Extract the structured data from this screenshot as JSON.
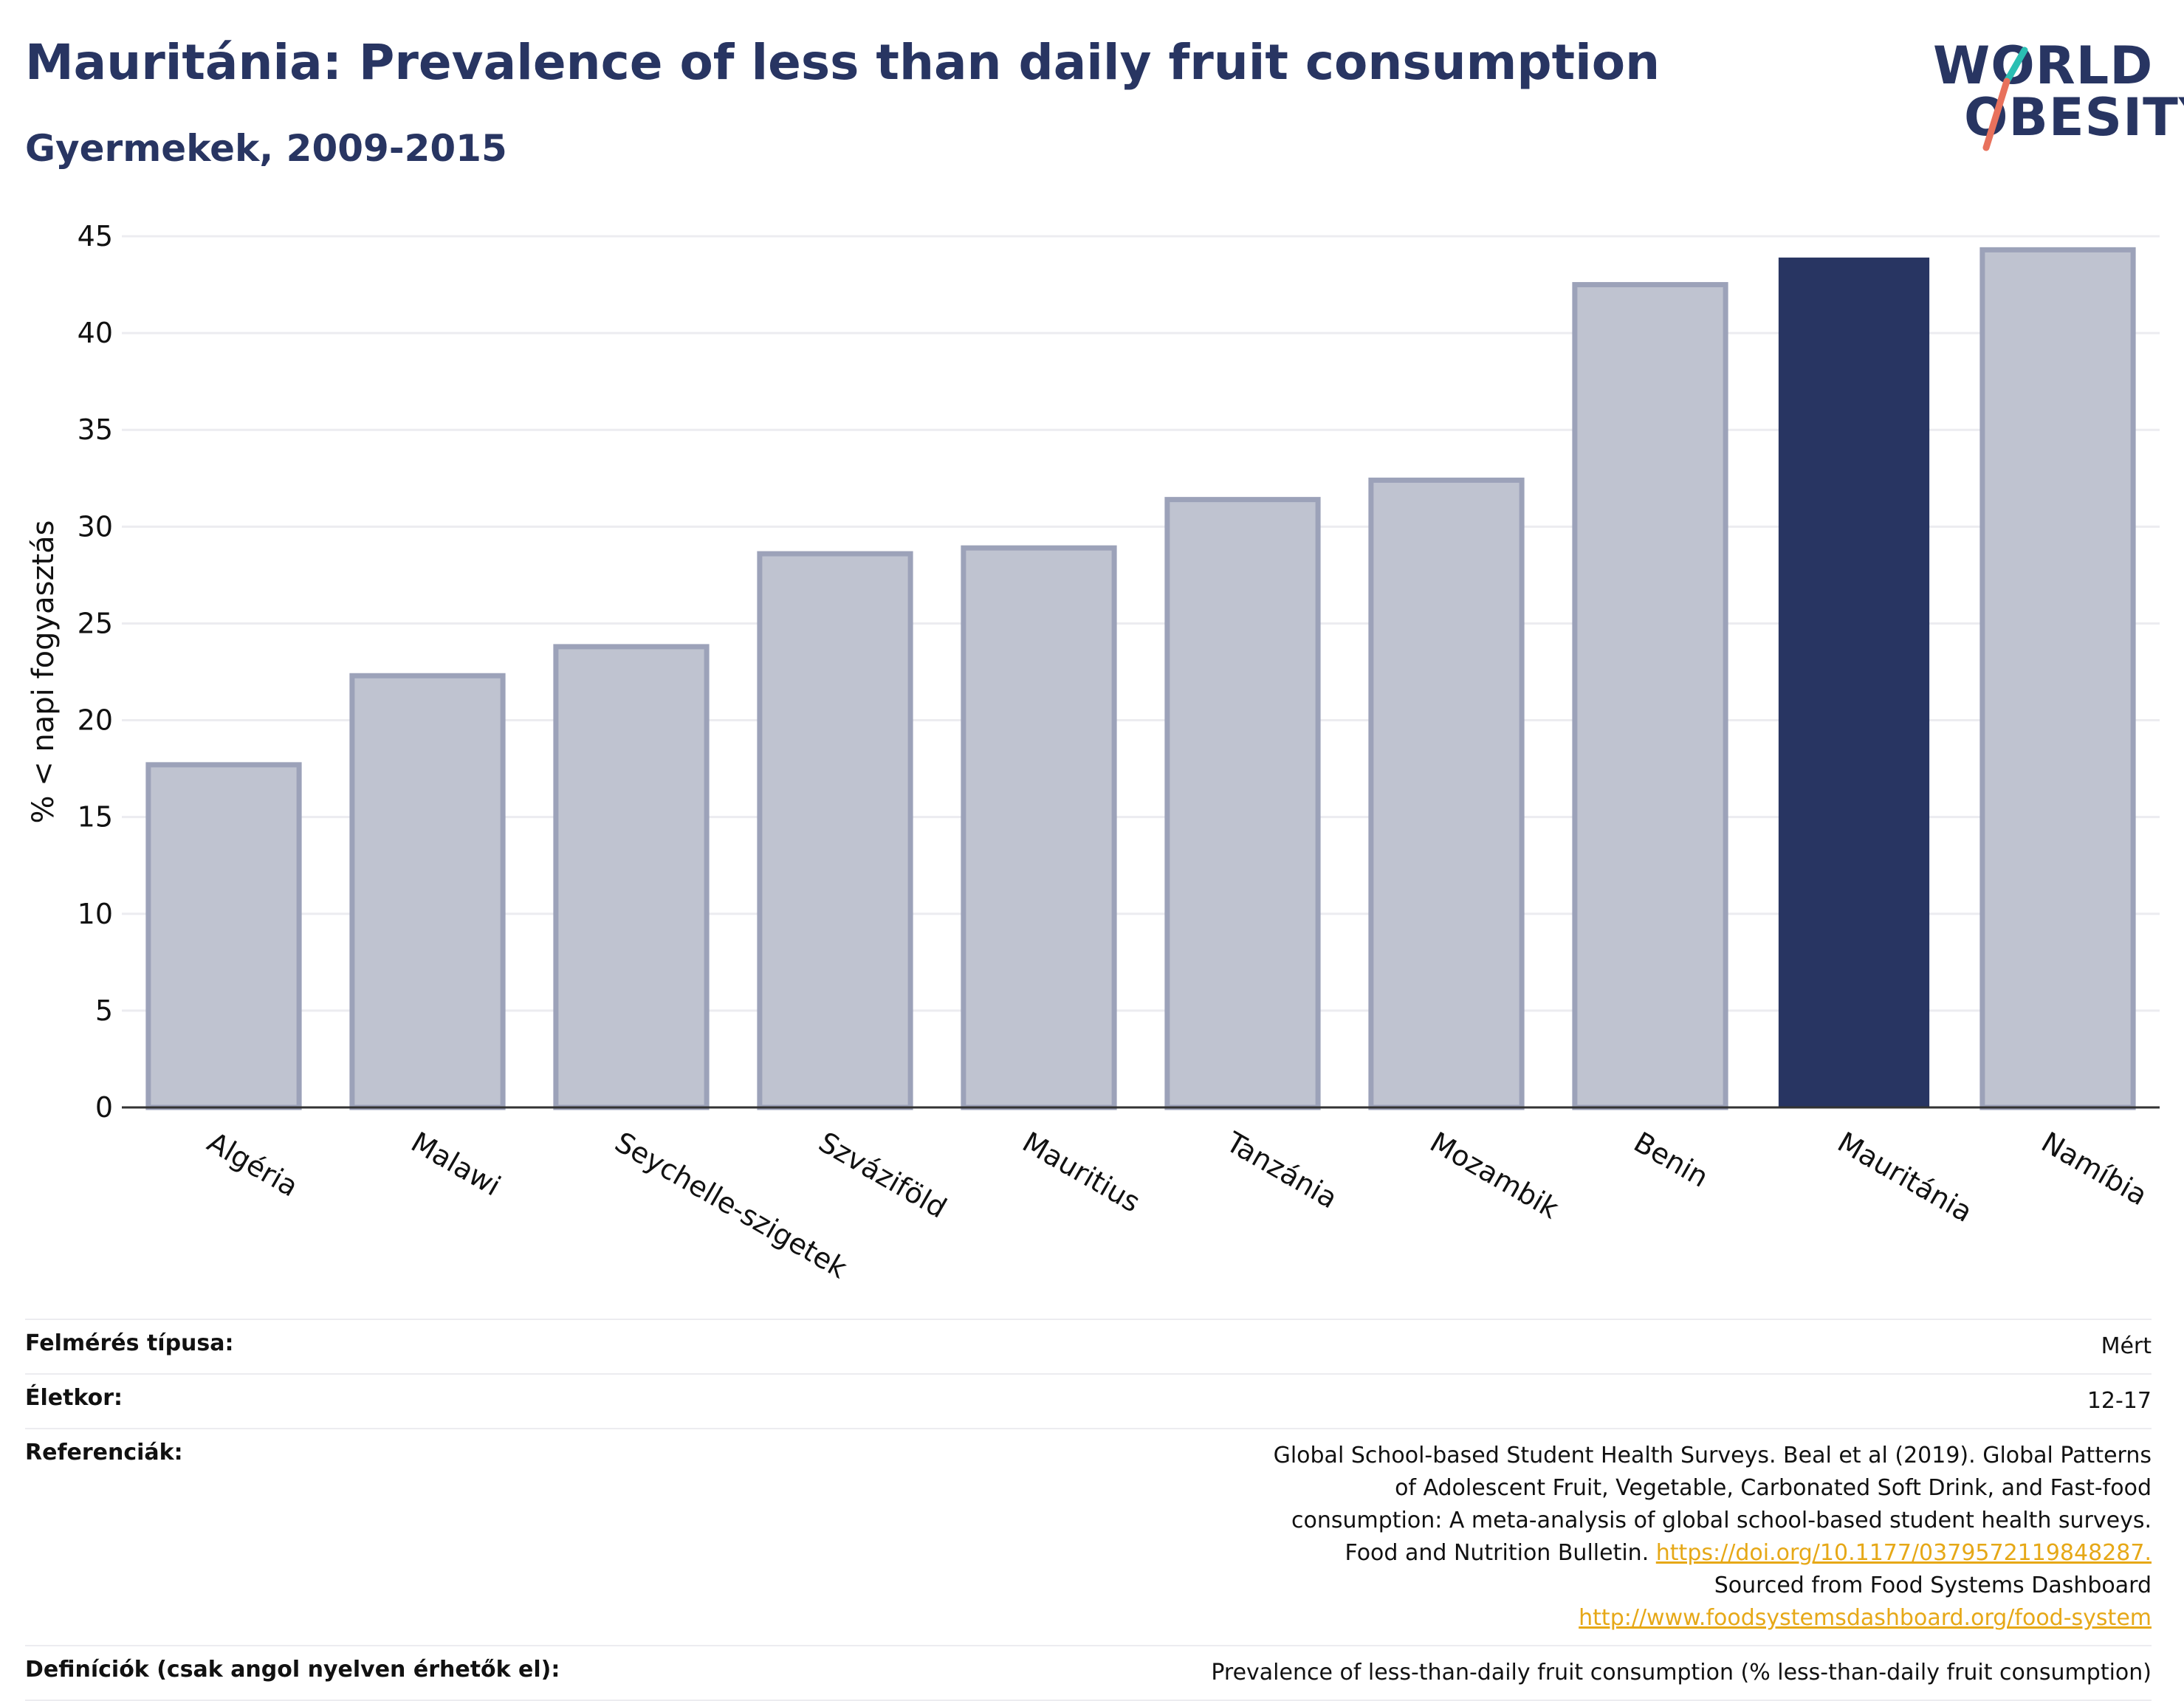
{
  "header": {
    "title": "Mauritánia: Prevalence of less than daily fruit consumption",
    "subtitle": "Gyermekek, 2009-2015"
  },
  "logo": {
    "line1": "WORLD",
    "line2": "OBESITY",
    "accent_colors": [
      "#2bbfb3",
      "#e8715c"
    ]
  },
  "colors": {
    "highlight_bar": "#283562",
    "other_bar_fill": "#bfc3d0",
    "other_bar_stroke": "#9ca2b9",
    "gridline": "#ececf0",
    "axis": "#333333"
  },
  "chart_data": {
    "type": "bar",
    "title": "Mauritánia: Prevalence of less than daily fruit consumption",
    "subtitle": "Gyermekek, 2009-2015",
    "xlabel": "",
    "ylabel": "% < napi fogyasztás",
    "categories": [
      "Algéria",
      "Malawi",
      "Seychelle-szigetek",
      "Szváziföld",
      "Mauritius",
      "Tanzánia",
      "Mozambik",
      "Benin",
      "Mauritánia",
      "Namíbia"
    ],
    "values": [
      17.7,
      22.3,
      23.8,
      28.6,
      28.9,
      31.4,
      32.4,
      42.5,
      43.9,
      44.3
    ],
    "highlight": "Mauritánia",
    "ylim": [
      0,
      45
    ],
    "yticks": [
      0,
      5,
      10,
      15,
      20,
      25,
      30,
      35,
      40,
      45
    ],
    "grid": true,
    "legend": "none"
  },
  "info": {
    "rows": [
      {
        "label": "Felmérés típusa:",
        "value": "Mért"
      },
      {
        "label": "Életkor:",
        "value": "12-17"
      }
    ],
    "references_label": "Referenciák:",
    "references_text1": "Global School-based Student Health Surveys. Beal et al (2019). Global Patterns of Adolescent Fruit, Vegetable, Carbonated Soft Drink, and Fast-food consumption: A meta-analysis of global school-based student health surveys. Food and Nutrition Bulletin.",
    "references_link1": "https://doi.org/10.1177/0379572119848287.",
    "references_text2": "Sourced from Food Systems Dashboard",
    "references_link2": "http://www.foodsystemsdashboard.org/food-system",
    "definitions_label": "Definíciók (csak angol nyelven érhetők el):",
    "definitions_value": "Prevalence of less-than-daily fruit consumption (% less-than-daily fruit consumption)"
  }
}
